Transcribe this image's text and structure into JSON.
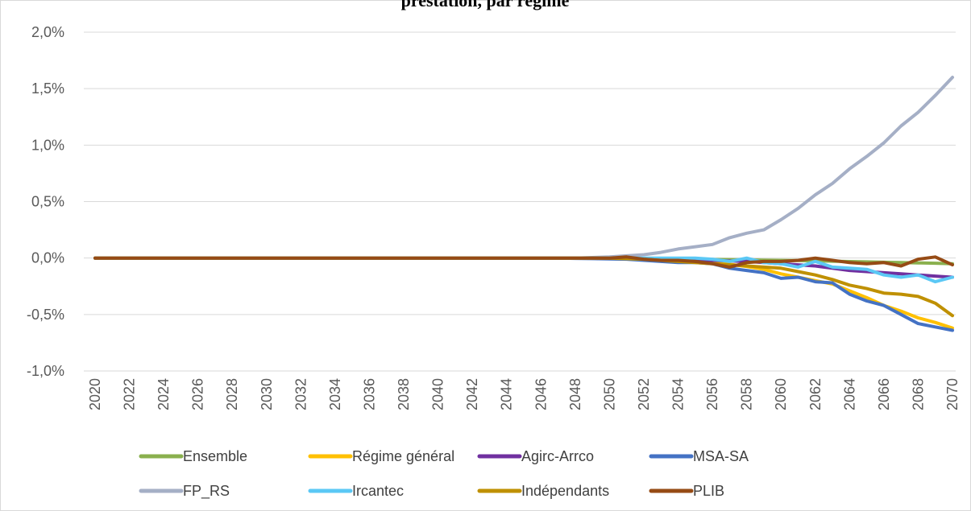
{
  "chart_data": {
    "type": "line",
    "title": "prestation, par régime",
    "xlabel": "",
    "ylabel": "",
    "ylim": [
      -0.01,
      0.02
    ],
    "yticks": [
      -0.01,
      -0.005,
      0.0,
      0.005,
      0.01,
      0.015,
      0.02
    ],
    "ytick_labels": [
      "-1,0%",
      "-0,5%",
      "0,0%",
      "0,5%",
      "1,0%",
      "1,5%",
      "2,0%"
    ],
    "x": [
      2020,
      2021,
      2022,
      2023,
      2024,
      2025,
      2026,
      2027,
      2028,
      2029,
      2030,
      2031,
      2032,
      2033,
      2034,
      2035,
      2036,
      2037,
      2038,
      2039,
      2040,
      2041,
      2042,
      2043,
      2044,
      2045,
      2046,
      2047,
      2048,
      2049,
      2050,
      2051,
      2052,
      2053,
      2054,
      2055,
      2056,
      2057,
      2058,
      2059,
      2060,
      2061,
      2062,
      2063,
      2064,
      2065,
      2066,
      2067,
      2068,
      2069,
      2070
    ],
    "xtick_labels": [
      "2020",
      "2022",
      "2024",
      "2026",
      "2028",
      "2030",
      "2032",
      "2034",
      "2036",
      "2038",
      "2040",
      "2042",
      "2044",
      "2046",
      "2048",
      "2050",
      "2052",
      "2054",
      "2056",
      "2058",
      "2060",
      "2062",
      "2064",
      "2066",
      "2068",
      "2070"
    ],
    "grid": "horizontal",
    "legend_position": "bottom",
    "series": [
      {
        "name": "Ensemble",
        "color": "#8AB04E",
        "values": [
          0,
          0,
          0,
          0,
          0,
          0,
          0,
          0,
          0,
          0,
          0,
          0,
          0,
          0,
          0,
          0,
          0,
          0,
          0,
          0,
          0,
          0,
          0,
          0,
          0,
          0,
          0,
          0,
          -1e-05,
          -1e-05,
          -1e-05,
          -2e-05,
          -3e-05,
          -5e-05,
          -7e-05,
          -9e-05,
          -0.00012,
          -0.00014,
          -0.00016,
          -0.00018,
          -0.0002,
          -0.00022,
          -0.00025,
          -0.00028,
          -0.00031,
          -0.00034,
          -0.00037,
          -0.0004,
          -0.00043,
          -0.00046,
          -0.0005
        ]
      },
      {
        "name": "Régime général",
        "color": "#FFC000",
        "values": [
          0,
          0,
          0,
          0,
          0,
          0,
          0,
          0,
          0,
          0,
          0,
          0,
          0,
          0,
          0,
          0,
          0,
          0,
          0,
          0,
          0,
          0,
          0,
          0,
          0,
          0,
          0,
          0,
          -1e-05,
          -2e-05,
          -3e-05,
          -4e-05,
          -8e-05,
          -0.0001,
          -0.00015,
          -0.0002,
          -0.00035,
          -0.00055,
          -0.00075,
          -0.001,
          -0.0014,
          -0.0017,
          -0.002,
          -0.0023,
          -0.0029,
          -0.0035,
          -0.0042,
          -0.0047,
          -0.0053,
          -0.0057,
          -0.0062
        ]
      },
      {
        "name": "Agirc-Arrco",
        "color": "#7030A0",
        "values": [
          0,
          0,
          0,
          0,
          0,
          0,
          0,
          0,
          0,
          0,
          0,
          0,
          0,
          0,
          0,
          0,
          0,
          0,
          0,
          0,
          0,
          0,
          0,
          0,
          0,
          0,
          0,
          0,
          -1e-05,
          -2e-05,
          -3e-05,
          -4e-05,
          -6e-05,
          -0.0001,
          -0.00012,
          -0.00014,
          -0.0002,
          -0.00025,
          -0.0003,
          -0.0004,
          -0.0005,
          -0.0006,
          -0.0007,
          -0.0009,
          -0.0011,
          -0.0012,
          -0.0013,
          -0.0014,
          -0.0015,
          -0.0016,
          -0.0017
        ]
      },
      {
        "name": "MSA-SA",
        "color": "#4472C4",
        "values": [
          0,
          0,
          0,
          0,
          0,
          0,
          0,
          0,
          0,
          0,
          0,
          0,
          0,
          0,
          0,
          0,
          0,
          0,
          0,
          0,
          0,
          0,
          0,
          0,
          0,
          0,
          0,
          0,
          -3e-05,
          -5e-05,
          -8e-05,
          -0.0001,
          -0.0002,
          -0.0003,
          -0.0004,
          -0.0004,
          -0.0005,
          -0.0009,
          -0.0011,
          -0.0013,
          -0.0018,
          -0.0017,
          -0.0021,
          -0.0022,
          -0.0032,
          -0.0038,
          -0.0042,
          -0.005,
          -0.0058,
          -0.0061,
          -0.0064
        ]
      },
      {
        "name": "FP_RS",
        "color": "#A5AFC6",
        "values": [
          0,
          0,
          0,
          0,
          0,
          0,
          0,
          0,
          0,
          0,
          0,
          0,
          0,
          0,
          0,
          0,
          0,
          0,
          0,
          0,
          0,
          0,
          0,
          0,
          0,
          0,
          0,
          0,
          0,
          5e-05,
          0.0001,
          0.0002,
          0.0003,
          0.0005,
          0.0008,
          0.001,
          0.0012,
          0.0018,
          0.0022,
          0.0025,
          0.0034,
          0.0044,
          0.0056,
          0.0066,
          0.0079,
          0.009,
          0.0102,
          0.0117,
          0.0129,
          0.0144,
          0.016
        ]
      },
      {
        "name": "Ircantec",
        "color": "#5BC8F5",
        "values": [
          0,
          0,
          0,
          0,
          0,
          0,
          0,
          0,
          0,
          0,
          0,
          0,
          0,
          0,
          0,
          0,
          0,
          0,
          0,
          0,
          0,
          0,
          0,
          0,
          0,
          0,
          0,
          0,
          0,
          0,
          0,
          0,
          0,
          0,
          0,
          0,
          -0.0001,
          -0.0003,
          0,
          -0.0004,
          -0.0005,
          -0.0008,
          -0.0003,
          -0.0008,
          -0.0009,
          -0.001,
          -0.0015,
          -0.0017,
          -0.0015,
          -0.0021,
          -0.0017
        ]
      },
      {
        "name": "Indépendants",
        "color": "#BF9000",
        "values": [
          0,
          0,
          0,
          0,
          0,
          0,
          0,
          0,
          0,
          0,
          0,
          0,
          0,
          0,
          0,
          0,
          0,
          0,
          0,
          0,
          0,
          0,
          0,
          0,
          0,
          0,
          0,
          0,
          0,
          0,
          -2e-05,
          -5e-05,
          -0.0001,
          -0.0002,
          -0.0003,
          -0.0004,
          -0.0005,
          -0.0006,
          -0.0007,
          -0.0008,
          -0.0009,
          -0.0012,
          -0.0015,
          -0.0019,
          -0.0024,
          -0.0027,
          -0.0031,
          -0.0032,
          -0.0034,
          -0.004,
          -0.0051
        ]
      },
      {
        "name": "PLIB",
        "color": "#964B15",
        "values": [
          0,
          0,
          0,
          0,
          0,
          0,
          0,
          0,
          0,
          0,
          0,
          0,
          0,
          0,
          0,
          0,
          0,
          0,
          0,
          0,
          0,
          0,
          0,
          0,
          0,
          0,
          0,
          0,
          0,
          0,
          0,
          0.0001,
          -0.0001,
          -0.0002,
          -0.0002,
          -0.0003,
          -0.0005,
          -0.0008,
          -0.0004,
          -0.0003,
          -0.0003,
          -0.0002,
          0,
          -0.0002,
          -0.0004,
          -0.0005,
          -0.0004,
          -0.0007,
          -0.0001,
          0.0001,
          -0.0006
        ]
      }
    ]
  }
}
